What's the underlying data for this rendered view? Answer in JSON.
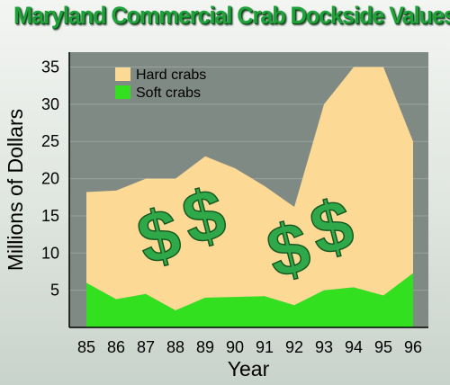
{
  "chart_data": {
    "type": "area",
    "title": "Maryland Commercial Crab Dockside Values",
    "xlabel": "Year",
    "ylabel": "Millions of Dollars",
    "categories": [
      "85",
      "86",
      "87",
      "88",
      "89",
      "90",
      "91",
      "92",
      "93",
      "94",
      "95",
      "96"
    ],
    "ylim": [
      0,
      37
    ],
    "yticks": [
      "5",
      "10",
      "15",
      "20",
      "25",
      "30",
      "35"
    ],
    "grid": true,
    "legend_position": "top-left",
    "stacked": true,
    "series": [
      {
        "name": "Soft crabs",
        "color": "#33e020",
        "values": [
          6.0,
          3.8,
          4.5,
          2.3,
          4.0,
          4.1,
          4.2,
          3.0,
          5.0,
          5.4,
          4.3,
          7.3
        ]
      },
      {
        "name": "Hard crabs",
        "color": "#fcd994",
        "values": [
          12.2,
          14.6,
          15.5,
          17.7,
          19.0,
          17.3,
          14.8,
          13.2,
          25.0,
          29.6,
          30.7,
          17.7
        ]
      }
    ],
    "decoration": {
      "symbol": "$",
      "color": "#2fa84a",
      "count": 4
    }
  }
}
